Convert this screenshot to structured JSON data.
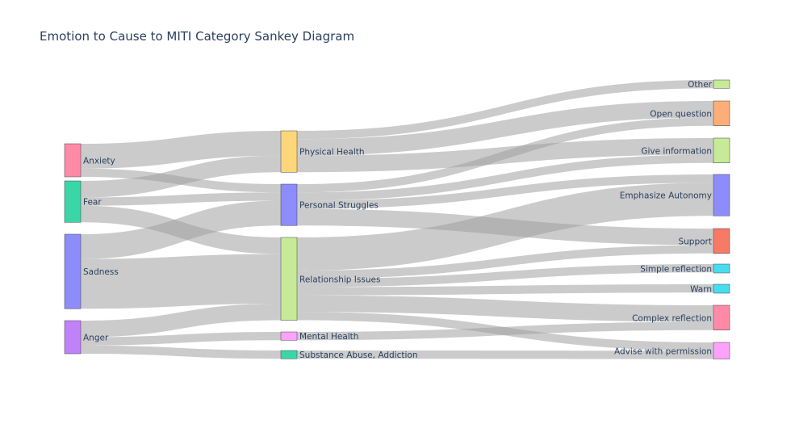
{
  "chart_data": {
    "type": "sankey",
    "title": "Emotion to Cause to MITI Category Sankey Diagram",
    "columns": [
      [
        "Anxiety",
        "Fear",
        "Sadness",
        "Anger"
      ],
      [
        "Physical Health",
        "Personal Struggles",
        "Relationship Issues",
        "Mental Health",
        "Substance Abuse, Addiction"
      ],
      [
        "Other",
        "Open question",
        "Give information",
        "Emphasize Autonomy",
        "Support",
        "Simple reflection",
        "Warn",
        "Complex reflection",
        "Advise with permission"
      ]
    ],
    "node_colors": {
      "Anxiety": "#ff8aa8",
      "Fear": "#3ad6a8",
      "Sadness": "#8c8cfa",
      "Anger": "#c082f8",
      "Physical Health": "#fcd77a",
      "Personal Struggles": "#8c8cfa",
      "Relationship Issues": "#c6ea98",
      "Mental Health": "#fca2fc",
      "Substance Abuse, Addiction": "#3ad6a8",
      "Other": "#c6ea98",
      "Open question": "#fcae78",
      "Give information": "#c6ea98",
      "Emphasize Autonomy": "#8c8cfa",
      "Support": "#f67a66",
      "Simple reflection": "#48dcf0",
      "Warn": "#48dcf0",
      "Complex reflection": "#ff8aa8",
      "Advise with permission": "#fca2fc"
    },
    "links": [
      {
        "source": "Anxiety",
        "target": "Physical Health",
        "value": 1.5
      },
      {
        "source": "Anxiety",
        "target": "Personal Struggles",
        "value": 0.5
      },
      {
        "source": "Fear",
        "target": "Physical Health",
        "value": 1
      },
      {
        "source": "Fear",
        "target": "Personal Struggles",
        "value": 0.5
      },
      {
        "source": "Fear",
        "target": "Relationship Issues",
        "value": 1
      },
      {
        "source": "Sadness",
        "target": "Personal Struggles",
        "value": 1.5
      },
      {
        "source": "Sadness",
        "target": "Relationship Issues",
        "value": 3
      },
      {
        "source": "Anger",
        "target": "Relationship Issues",
        "value": 1
      },
      {
        "source": "Anger",
        "target": "Mental Health",
        "value": 0.5
      },
      {
        "source": "Anger",
        "target": "Substance Abuse, Addiction",
        "value": 0.5
      },
      {
        "source": "Physical Health",
        "target": "Other",
        "value": 0.5
      },
      {
        "source": "Physical Health",
        "target": "Open question",
        "value": 1
      },
      {
        "source": "Physical Health",
        "target": "Give information",
        "value": 1
      },
      {
        "source": "Personal Struggles",
        "target": "Open question",
        "value": 0.5
      },
      {
        "source": "Personal Struggles",
        "target": "Give information",
        "value": 0.5
      },
      {
        "source": "Personal Struggles",
        "target": "Emphasize Autonomy",
        "value": 0.5
      },
      {
        "source": "Personal Struggles",
        "target": "Support",
        "value": 1
      },
      {
        "source": "Relationship Issues",
        "target": "Emphasize Autonomy",
        "value": 2
      },
      {
        "source": "Relationship Issues",
        "target": "Support",
        "value": 0.5
      },
      {
        "source": "Relationship Issues",
        "target": "Simple reflection",
        "value": 0.5
      },
      {
        "source": "Relationship Issues",
        "target": "Warn",
        "value": 0.5
      },
      {
        "source": "Relationship Issues",
        "target": "Complex reflection",
        "value": 1
      },
      {
        "source": "Relationship Issues",
        "target": "Advise with permission",
        "value": 0.5
      },
      {
        "source": "Mental Health",
        "target": "Complex reflection",
        "value": 0.5
      },
      {
        "source": "Substance Abuse, Addiction",
        "target": "Advise with permission",
        "value": 0.5
      }
    ]
  }
}
